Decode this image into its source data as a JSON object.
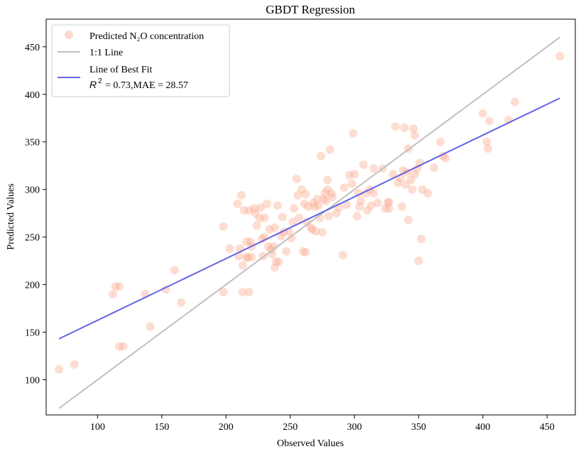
{
  "chart_data": {
    "type": "scatter",
    "title": "GBDT Regression",
    "xlabel": "Observed Values",
    "ylabel": "Predicted Values",
    "xlim": [
      60,
      472
    ],
    "ylim": [
      63,
      479
    ],
    "xticks": [
      100,
      150,
      200,
      250,
      300,
      350,
      400,
      450
    ],
    "yticks": [
      100,
      150,
      200,
      250,
      300,
      350,
      400,
      450
    ],
    "grid": false,
    "legend_position": "top-left",
    "legend": {
      "scatter_label": "Predicted N₂O concentration",
      "identity_label": "1:1 Line",
      "fit_label": "Line of Best Fit",
      "fit_stats": "= 0.73,MAE = 28.57",
      "r2_symbol": "R",
      "r2_exponent": "2"
    },
    "colors": {
      "points": "#f9a98e",
      "identity_line": "#c0c0c0",
      "fit_line": "#6464e6",
      "axes": "#000000"
    },
    "identity_line": {
      "x": [
        70,
        460
      ],
      "y": [
        70,
        460
      ]
    },
    "fit_line": {
      "x": [
        70,
        460
      ],
      "y": [
        143,
        396
      ]
    },
    "points": [
      [
        70,
        111
      ],
      [
        82,
        116
      ],
      [
        112,
        190
      ],
      [
        114,
        198
      ],
      [
        117,
        198
      ],
      [
        117,
        135
      ],
      [
        120,
        135
      ],
      [
        137,
        190
      ],
      [
        141,
        156
      ],
      [
        153,
        195
      ],
      [
        160,
        215
      ],
      [
        165,
        181
      ],
      [
        198,
        261
      ],
      [
        198,
        192
      ],
      [
        203,
        238
      ],
      [
        209,
        285
      ],
      [
        210,
        230
      ],
      [
        211,
        238
      ],
      [
        212,
        294
      ],
      [
        213,
        192
      ],
      [
        213,
        220
      ],
      [
        214,
        278
      ],
      [
        216,
        229
      ],
      [
        216,
        245
      ],
      [
        217,
        228
      ],
      [
        218,
        192
      ],
      [
        218,
        278
      ],
      [
        219,
        245
      ],
      [
        220,
        229
      ],
      [
        220,
        240
      ],
      [
        222,
        280
      ],
      [
        223,
        275
      ],
      [
        224,
        262
      ],
      [
        226,
        270
      ],
      [
        227,
        281
      ],
      [
        228,
        248
      ],
      [
        229,
        230
      ],
      [
        230,
        250
      ],
      [
        230,
        270
      ],
      [
        232,
        285
      ],
      [
        233,
        240
      ],
      [
        234,
        258
      ],
      [
        235,
        237
      ],
      [
        236,
        232
      ],
      [
        237,
        240
      ],
      [
        238,
        260
      ],
      [
        238,
        218
      ],
      [
        239,
        224
      ],
      [
        240,
        283
      ],
      [
        241,
        224
      ],
      [
        243,
        251
      ],
      [
        244,
        271
      ],
      [
        245,
        255
      ],
      [
        247,
        235
      ],
      [
        249,
        256
      ],
      [
        251,
        249
      ],
      [
        252,
        266
      ],
      [
        253,
        280
      ],
      [
        255,
        311
      ],
      [
        256,
        294
      ],
      [
        257,
        270
      ],
      [
        259,
        300
      ],
      [
        260,
        235
      ],
      [
        261,
        285
      ],
      [
        262,
        234
      ],
      [
        262,
        295
      ],
      [
        263,
        266
      ],
      [
        264,
        282
      ],
      [
        266,
        260
      ],
      [
        267,
        258
      ],
      [
        268,
        286
      ],
      [
        269,
        282
      ],
      [
        270,
        256
      ],
      [
        271,
        290
      ],
      [
        272,
        283
      ],
      [
        273,
        270
      ],
      [
        274,
        335
      ],
      [
        275,
        255
      ],
      [
        276,
        290
      ],
      [
        277,
        296
      ],
      [
        278,
        288
      ],
      [
        279,
        300
      ],
      [
        279,
        310
      ],
      [
        280,
        272
      ],
      [
        281,
        342
      ],
      [
        282,
        296
      ],
      [
        283,
        292
      ],
      [
        286,
        275
      ],
      [
        288,
        281
      ],
      [
        291,
        231
      ],
      [
        292,
        302
      ],
      [
        294,
        284
      ],
      [
        296,
        315
      ],
      [
        298,
        306
      ],
      [
        299,
        359
      ],
      [
        300,
        316
      ],
      [
        302,
        272
      ],
      [
        303,
        296
      ],
      [
        304,
        282
      ],
      [
        305,
        288
      ],
      [
        307,
        326
      ],
      [
        309,
        296
      ],
      [
        310,
        278
      ],
      [
        312,
        300
      ],
      [
        313,
        283
      ],
      [
        315,
        296
      ],
      [
        315,
        322
      ],
      [
        318,
        286
      ],
      [
        322,
        322
      ],
      [
        324,
        280
      ],
      [
        326,
        286
      ],
      [
        327,
        287
      ],
      [
        327,
        280
      ],
      [
        330,
        316
      ],
      [
        332,
        366
      ],
      [
        334,
        307
      ],
      [
        336,
        312
      ],
      [
        337,
        282
      ],
      [
        338,
        320
      ],
      [
        339,
        365
      ],
      [
        340,
        305
      ],
      [
        341,
        318
      ],
      [
        342,
        268
      ],
      [
        342,
        343
      ],
      [
        344,
        310
      ],
      [
        345,
        300
      ],
      [
        346,
        364
      ],
      [
        347,
        357
      ],
      [
        347,
        316
      ],
      [
        349,
        322
      ],
      [
        350,
        225
      ],
      [
        351,
        328
      ],
      [
        352,
        248
      ],
      [
        353,
        300
      ],
      [
        357,
        296
      ],
      [
        362,
        323
      ],
      [
        367,
        350
      ],
      [
        369,
        335
      ],
      [
        371,
        333
      ],
      [
        400,
        380
      ],
      [
        403,
        350
      ],
      [
        404,
        343
      ],
      [
        405,
        372
      ],
      [
        420,
        373
      ],
      [
        425,
        392
      ],
      [
        460,
        440
      ]
    ]
  }
}
